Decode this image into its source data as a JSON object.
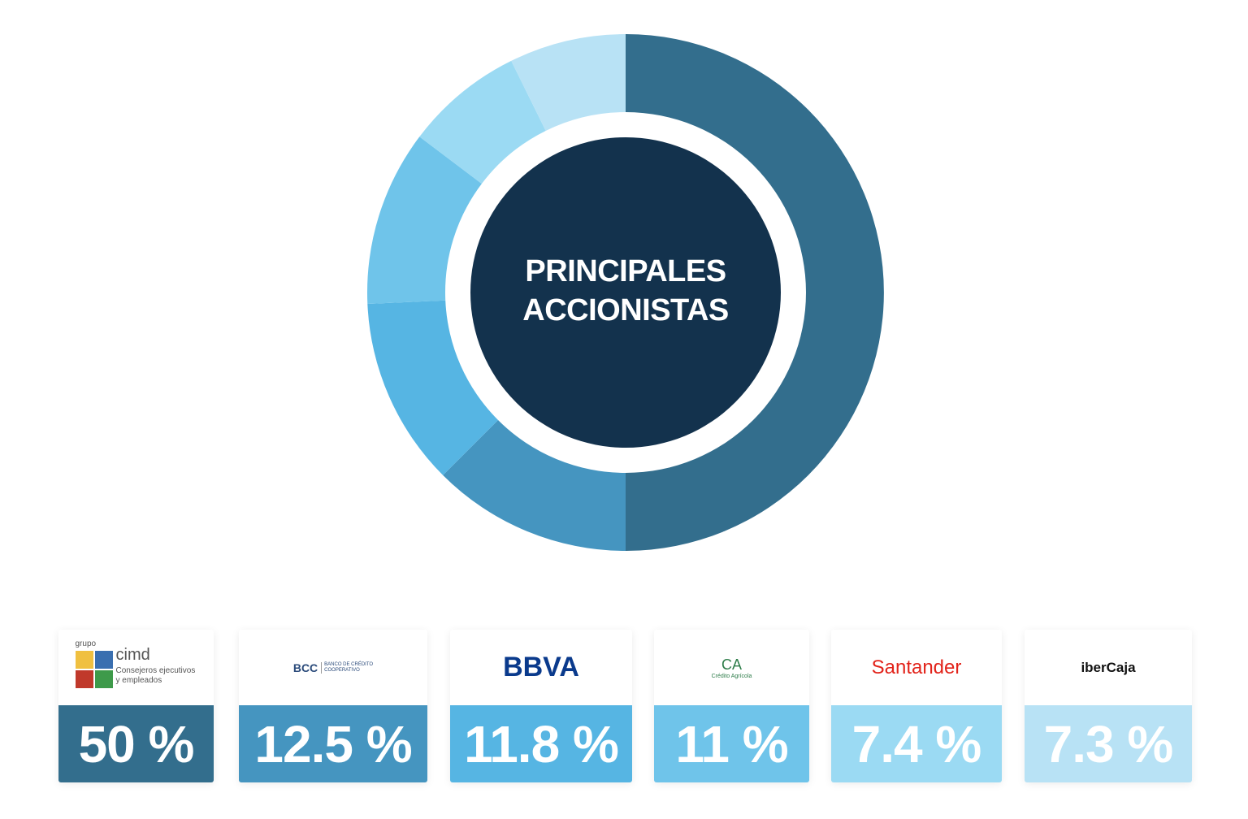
{
  "chart_data": {
    "type": "donut",
    "title": "PRINCIPALES ACCIONISTAS",
    "categories": [
      "cimd",
      "BCC",
      "BBVA",
      "CA",
      "Santander",
      "iberCaja"
    ],
    "category_prefixes": [
      "grupo",
      null,
      null,
      null,
      null,
      null
    ],
    "category_notes": [
      "Consejeros ejecutivos y empleados",
      "BANCO DE CRÉDITO COOPERATIVO",
      null,
      "Crédito Agrícola",
      null,
      null
    ],
    "values": [
      50,
      12.5,
      11.8,
      11,
      7.4,
      7.3
    ],
    "value_labels": [
      "50 %",
      "12.5 %",
      "11.8 %",
      "11 %",
      "7.4 %",
      "7.3 %"
    ],
    "colors": [
      "#336e8d",
      "#4595c0",
      "#56b5e3",
      "#6fc4ea",
      "#9bdaf3",
      "#b8e2f5"
    ],
    "center_color": "#13324d"
  }
}
